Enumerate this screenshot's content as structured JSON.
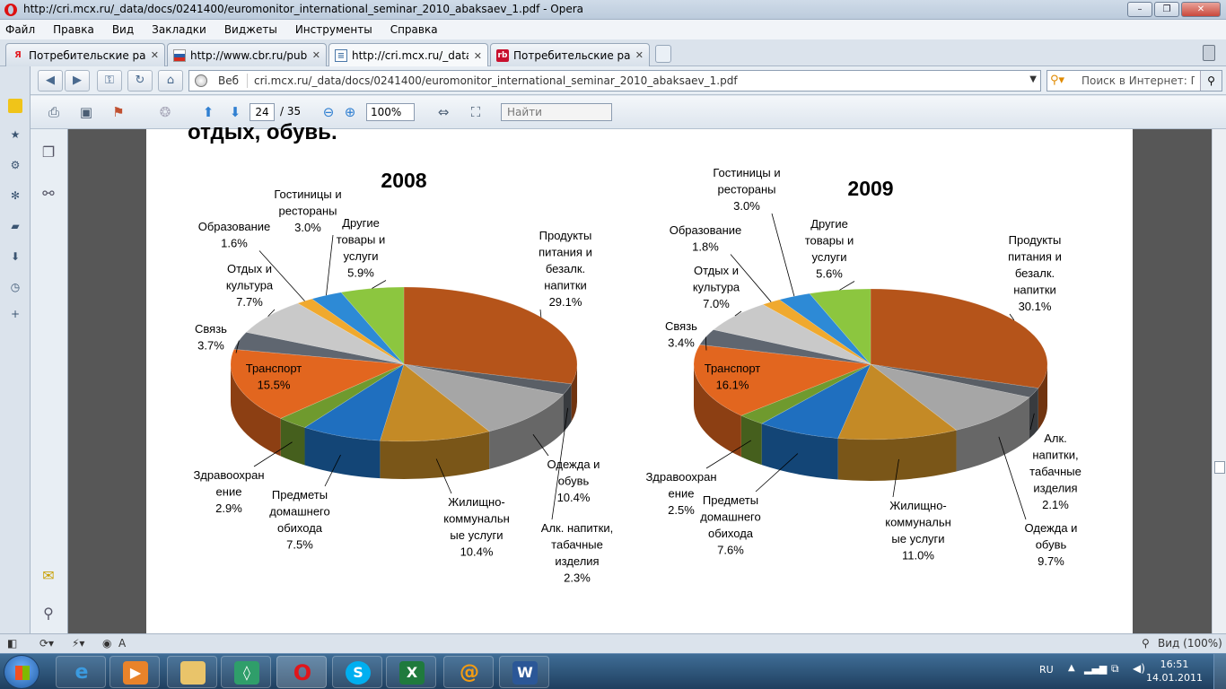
{
  "window": {
    "title": "http://cri.mcx.ru/_data/docs/0241400/euromonitor_international_seminar_2010_abaksaev_1.pdf - Opera"
  },
  "menu": [
    "Файл",
    "Правка",
    "Вид",
    "Закладки",
    "Виджеты",
    "Инструменты",
    "Справка"
  ],
  "tabs": [
    {
      "label": "Потребительские рас…",
      "icon": "yandex-icon",
      "color": "#e31e24"
    },
    {
      "label": "http://www.cbr.ru/pub…",
      "icon": "cbr-icon",
      "color": "#d4a017"
    },
    {
      "label": "http://cri.mcx.ru/_data…",
      "icon": "document-icon",
      "color": "#4a78a8"
    },
    {
      "label": "Потребительские рас…",
      "icon": "rb-icon",
      "color": "#c8102e"
    }
  ],
  "address": {
    "web_label": "Веб",
    "url": "cri.mcx.ru/_data/docs/0241400/euromonitor_international_seminar_2010_abaksaev_1.pdf",
    "search_placeholder": "Поиск в Интернет: Поі"
  },
  "pdf_toolbar": {
    "page": "24",
    "total": "/ 35",
    "zoom": "100%",
    "find_placeholder": "Найти"
  },
  "page_heading_cut": "отдых, обувь.",
  "status": {
    "zoom_label": "Вид (100%)",
    "mode": "A"
  },
  "tray": {
    "lang": "RU",
    "time": "16:51",
    "date": "14.01.2011"
  },
  "colors": {
    "food": "#b5541a",
    "alcohol": "#5a5f66",
    "clothing": "#a6a6a6",
    "utilities": "#c48a26",
    "household": "#1f6fbf",
    "health": "#6f9a2e",
    "transport": "#e2661f",
    "communication": "#5f6670",
    "recreation": "#c9c9c9",
    "education": "#f0a92e",
    "hotels": "#2d8ad6",
    "other": "#8cc63f"
  },
  "chart_data": [
    {
      "type": "pie",
      "title": "2008",
      "categories": [
        "Продукты питания и безалк. напитки",
        "Алк. напитки, табачные изделия",
        "Одежда и обувь",
        "Жилищно-коммунальные услуги",
        "Предметы домашнего обихода",
        "Здравоохранение",
        "Транспорт",
        "Связь",
        "Отдых и культура",
        "Образование",
        "Гостиницы и рестораны",
        "Другие товары и услуги"
      ],
      "values": [
        29.1,
        2.3,
        10.4,
        10.4,
        7.5,
        2.9,
        15.5,
        3.7,
        7.7,
        1.6,
        3.0,
        5.9
      ],
      "labels": [
        [
          "Продукты",
          "питания и",
          "безалк.",
          "напитки",
          "29.1%"
        ],
        [
          "Алк. напитки,",
          "табачные",
          "изделия",
          "2.3%"
        ],
        [
          "Одежда и",
          "обувь",
          "10.4%"
        ],
        [
          "Жилищно-",
          "коммунальн",
          "ые услуги",
          "10.4%"
        ],
        [
          "Предметы",
          "домашнего",
          "обихода",
          "7.5%"
        ],
        [
          "Здравоохран",
          "ение",
          "2.9%"
        ],
        [
          "Транспорт",
          "15.5%"
        ],
        [
          "Связь",
          "3.7%"
        ],
        [
          "Отдых и",
          "культура",
          "7.7%"
        ],
        [
          "Образование",
          "1.6%"
        ],
        [
          "Гостиницы и",
          "рестораны",
          "3.0%"
        ],
        [
          "Другие",
          "товары и",
          "услуги",
          "5.9%"
        ]
      ]
    },
    {
      "type": "pie",
      "title": "2009",
      "categories": [
        "Продукты питания и безалк. напитки",
        "Алк. напитки, табачные изделия",
        "Одежда и обувь",
        "Жилищно-коммунальные услуги",
        "Предметы домашнего обихода",
        "Здравоохранение",
        "Транспорт",
        "Связь",
        "Отдых и культура",
        "Образование",
        "Гостиницы и рестораны",
        "Другие товары и услуги"
      ],
      "values": [
        30.1,
        2.1,
        9.7,
        11.0,
        7.6,
        2.5,
        16.1,
        3.4,
        7.0,
        1.8,
        3.0,
        5.6
      ],
      "labels": [
        [
          "Продукты",
          "питания и",
          "безалк.",
          "напитки",
          "30.1%"
        ],
        [
          "Алк.",
          "напитки,",
          "табачные",
          "изделия",
          "2.1%"
        ],
        [
          "Одежда и",
          "обувь",
          "9.7%"
        ],
        [
          "Жилищно-",
          "коммунальн",
          "ые услуги",
          "11.0%"
        ],
        [
          "Предметы",
          "домашнего",
          "обихода",
          "7.6%"
        ],
        [
          "Здравоохран",
          "ение",
          "2.5%"
        ],
        [
          "Транспорт",
          "16.1%"
        ],
        [
          "Связь",
          "3.4%"
        ],
        [
          "Отдых и",
          "культура",
          "7.0%"
        ],
        [
          "Образование",
          "1.8%"
        ],
        [
          "Гостиницы и",
          "рестораны",
          "3.0%"
        ],
        [
          "Другие",
          "товары и",
          "услуги",
          "5.6%"
        ]
      ]
    }
  ]
}
